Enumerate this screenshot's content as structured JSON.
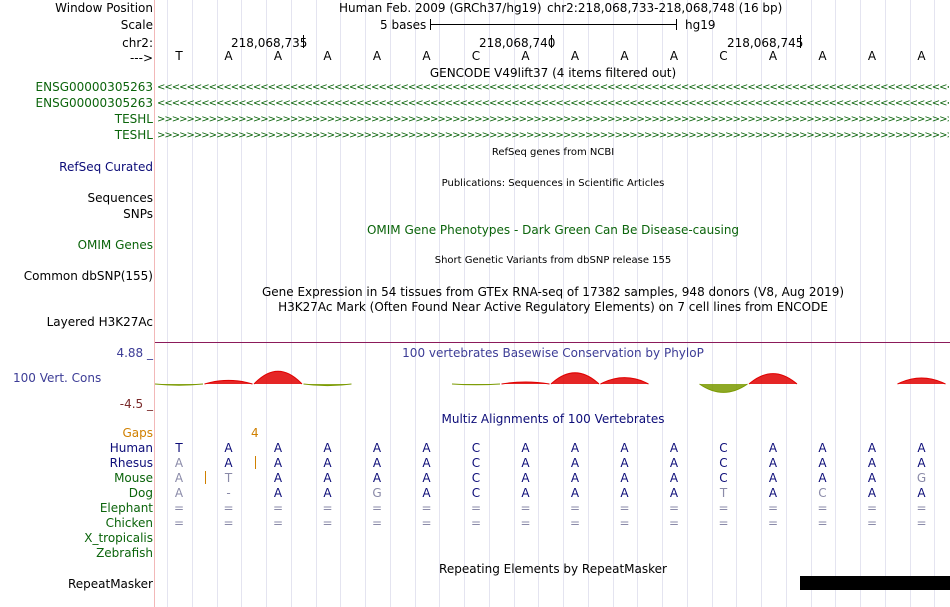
{
  "header": {
    "window_position_label": "Window Position",
    "assembly": "Human Feb. 2009 (GRCh37/hg19)",
    "position": "chr2:218,068,733-218,068,748 (16 bp)",
    "scale_label": "Scale",
    "scale_text": "5 bases",
    "scale_db": "hg19",
    "chrom_label": "chr2:",
    "strand_label": "--->",
    "ticks": [
      "218,068,735",
      "218,068,740",
      "218,068,745"
    ],
    "bases": [
      "T",
      "A",
      "A",
      "A",
      "A",
      "A",
      "C",
      "A",
      "A",
      "A",
      "A",
      "C",
      "A",
      "A",
      "A",
      "A"
    ]
  },
  "gencode": {
    "title": "GENCODE V49lift37 (4 items filtered out)",
    "items": [
      {
        "name": "ENSG00000305263",
        "strand": "<"
      },
      {
        "name": "ENSG00000305263",
        "strand": "<"
      },
      {
        "name": "TESHL",
        "strand": ">"
      },
      {
        "name": "TESHL",
        "strand": ">"
      }
    ]
  },
  "tracks": {
    "refseq_label": "RefSeq Curated",
    "refseq_title": "RefSeq genes from NCBI",
    "sequences_label": "Sequences",
    "publications_title": "Publications: Sequences in Scientific Articles",
    "snps_label": "SNPs",
    "omim_title": "OMIM Gene Phenotypes - Dark Green Can Be Disease-causing",
    "omim_label": "OMIM Genes",
    "dbsnp_title": "Short Genetic Variants from dbSNP release 155",
    "dbsnp_label": "Common dbSNP(155)",
    "gtex_title": "Gene Expression in 54 tissues from GTEx RNA-seq of 17382 samples, 948 donors (V8, Aug 2019)",
    "h3k_title": "H3K27Ac Mark (Often Found Near Active Regulatory Elements) on 7 cell lines from ENCODE",
    "h3k_label": "Layered H3K27Ac",
    "cons_max": "4.88 _",
    "cons_title": "100 vertebrates Basewise Conservation by PhyloP",
    "cons_label": "100 Vert. Cons",
    "cons_min": "-4.5 _",
    "multiz_title": "Multiz Alignments of 100 Vertebrates",
    "gaps_label": "Gaps",
    "gap_count": "4",
    "repeat_title": "Repeating Elements by RepeatMasker",
    "repeat_label": "RepeatMasker"
  },
  "conservation": {
    "scores": [
      -0.3,
      0.9,
      3.2,
      -0.4,
      null,
      null,
      -0.2,
      0.5,
      2.8,
      1.6,
      null,
      -2.1,
      2.6,
      null,
      null,
      1.5
    ]
  },
  "alignment": {
    "species": [
      {
        "name": "Human",
        "bases": [
          "T",
          "A",
          "A",
          "A",
          "A",
          "A",
          "C",
          "A",
          "A",
          "A",
          "A",
          "C",
          "A",
          "A",
          "A",
          "A"
        ],
        "dim": []
      },
      {
        "name": "Rhesus",
        "bases": [
          "A",
          "A",
          "A",
          "A",
          "A",
          "A",
          "C",
          "A",
          "A",
          "A",
          "A",
          "C",
          "A",
          "A",
          "A",
          "A"
        ],
        "dim": [
          0
        ]
      },
      {
        "name": "Mouse",
        "bases": [
          "A",
          "T",
          "A",
          "A",
          "A",
          "A",
          "C",
          "A",
          "A",
          "A",
          "A",
          "C",
          "A",
          "A",
          "A",
          "G"
        ],
        "dim": [
          0,
          1,
          15
        ]
      },
      {
        "name": "Dog",
        "bases": [
          "A",
          "-",
          "A",
          "A",
          "G",
          "A",
          "C",
          "A",
          "A",
          "A",
          "A",
          "T",
          "A",
          "C",
          "A",
          "A"
        ],
        "dim": [
          0,
          1,
          4,
          11,
          13
        ]
      },
      {
        "name": "Elephant",
        "bases": [
          "=",
          "=",
          "=",
          "=",
          "=",
          "=",
          "=",
          "=",
          "=",
          "=",
          "=",
          "=",
          "=",
          "=",
          "=",
          "="
        ],
        "dim": []
      },
      {
        "name": "Chicken",
        "bases": [
          "=",
          "=",
          "=",
          "=",
          "=",
          "=",
          "=",
          "=",
          "=",
          "=",
          "=",
          "=",
          "=",
          "=",
          "=",
          "="
        ],
        "dim": []
      },
      {
        "name": "X_tropicalis",
        "bases": [],
        "dim": []
      },
      {
        "name": "Zebrafish",
        "bases": [],
        "dim": []
      }
    ]
  },
  "colors": {
    "gene_green": "#0b640b",
    "navy": "#0c0c78",
    "cons_pos": "#e00000",
    "cons_neg": "#7a9a00",
    "gaps": "#d08000",
    "divider": "#8b1a5a"
  }
}
